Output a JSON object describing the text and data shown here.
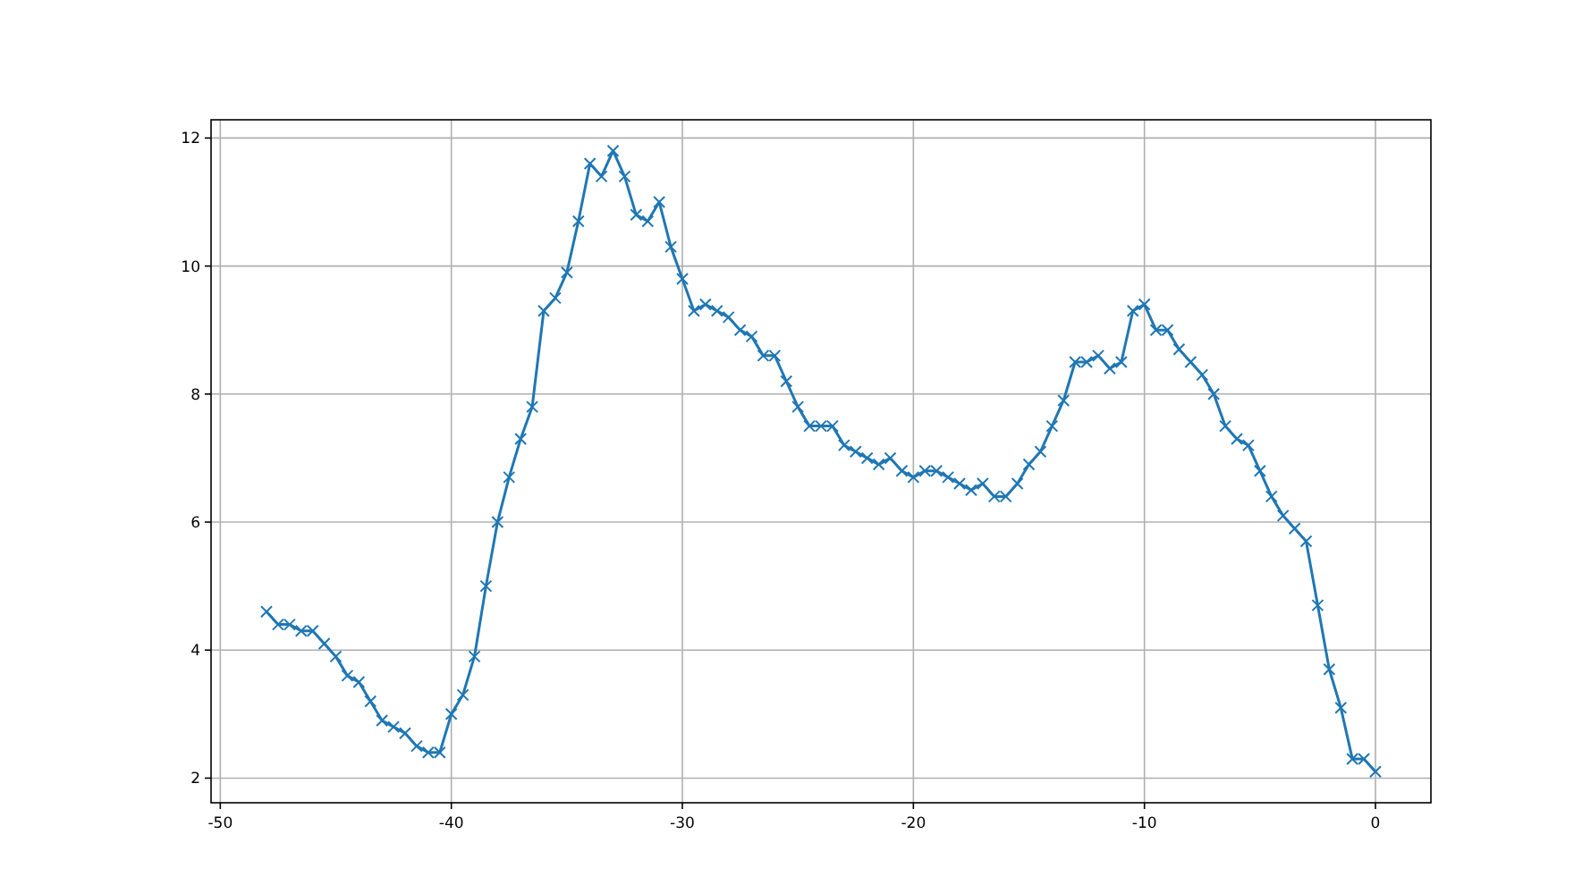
{
  "chart_data": {
    "type": "line",
    "x": [
      -48,
      -47.5,
      -47,
      -46.5,
      -46,
      -45.5,
      -45,
      -44.5,
      -44,
      -43.5,
      -43,
      -42.5,
      -42,
      -41.5,
      -41,
      -40.5,
      -40,
      -39.5,
      -39,
      -38.5,
      -38,
      -37.5,
      -37,
      -36.5,
      -36,
      -35.5,
      -35,
      -34.5,
      -34,
      -33.5,
      -33,
      -32.5,
      -32,
      -31.5,
      -31,
      -30.5,
      -30,
      -29.5,
      -29,
      -28.5,
      -28,
      -27.5,
      -27,
      -26.5,
      -26,
      -25.5,
      -25,
      -24.5,
      -24,
      -23.5,
      -23,
      -22.5,
      -22,
      -21.5,
      -21,
      -20.5,
      -20,
      -19.5,
      -19,
      -18.5,
      -18,
      -17.5,
      -17,
      -16.5,
      -16,
      -15.5,
      -15,
      -14.5,
      -14,
      -13.5,
      -13,
      -12.5,
      -12,
      -11.5,
      -11,
      -10.5,
      -10,
      -9.5,
      -9,
      -8.5,
      -8,
      -7.5,
      -7,
      -6.5,
      -6,
      -5.5,
      -5,
      -4.5,
      -4,
      -3.5,
      -3,
      -2.5,
      -2,
      -1.5,
      -1,
      -0.5,
      0
    ],
    "series": [
      {
        "color": "#1f77b4",
        "values": [
          4.6,
          4.4,
          4.4,
          4.3,
          4.3,
          4.1,
          3.9,
          3.6,
          3.5,
          3.2,
          2.9,
          2.8,
          2.7,
          2.5,
          2.4,
          2.4,
          3.0,
          3.3,
          3.9,
          5.0,
          6.0,
          6.7,
          7.3,
          7.8,
          9.3,
          9.5,
          9.9,
          10.7,
          11.6,
          11.4,
          11.8,
          11.4,
          10.8,
          10.7,
          11.0,
          10.3,
          9.8,
          9.3,
          9.4,
          9.3,
          9.2,
          9.0,
          8.9,
          8.6,
          8.6,
          8.2,
          7.8,
          7.5,
          7.5,
          7.5,
          7.2,
          7.1,
          7.0,
          6.9,
          7.0,
          6.8,
          6.7,
          6.8,
          6.8,
          6.7,
          6.6,
          6.5,
          6.6,
          6.4,
          6.4,
          6.6,
          6.9,
          7.1,
          7.5,
          7.9,
          8.5,
          8.5,
          8.6,
          8.4,
          8.5,
          9.3,
          9.4,
          9.0,
          9.0,
          8.7,
          8.5,
          8.3,
          8.0,
          7.5,
          7.3,
          7.2,
          6.8,
          6.4,
          6.1,
          5.9,
          5.7,
          4.7,
          3.7,
          3.1,
          2.3,
          2.3,
          2.1
        ]
      }
    ],
    "xlim": [
      -50.4,
      2.4
    ],
    "ylim": [
      1.615,
      12.285
    ],
    "xticks": [
      -50,
      -40,
      -30,
      -20,
      -10,
      0
    ],
    "yticks": [
      2,
      4,
      6,
      8,
      10,
      12
    ],
    "grid": true,
    "marker": "cross",
    "line_style": "solid"
  }
}
